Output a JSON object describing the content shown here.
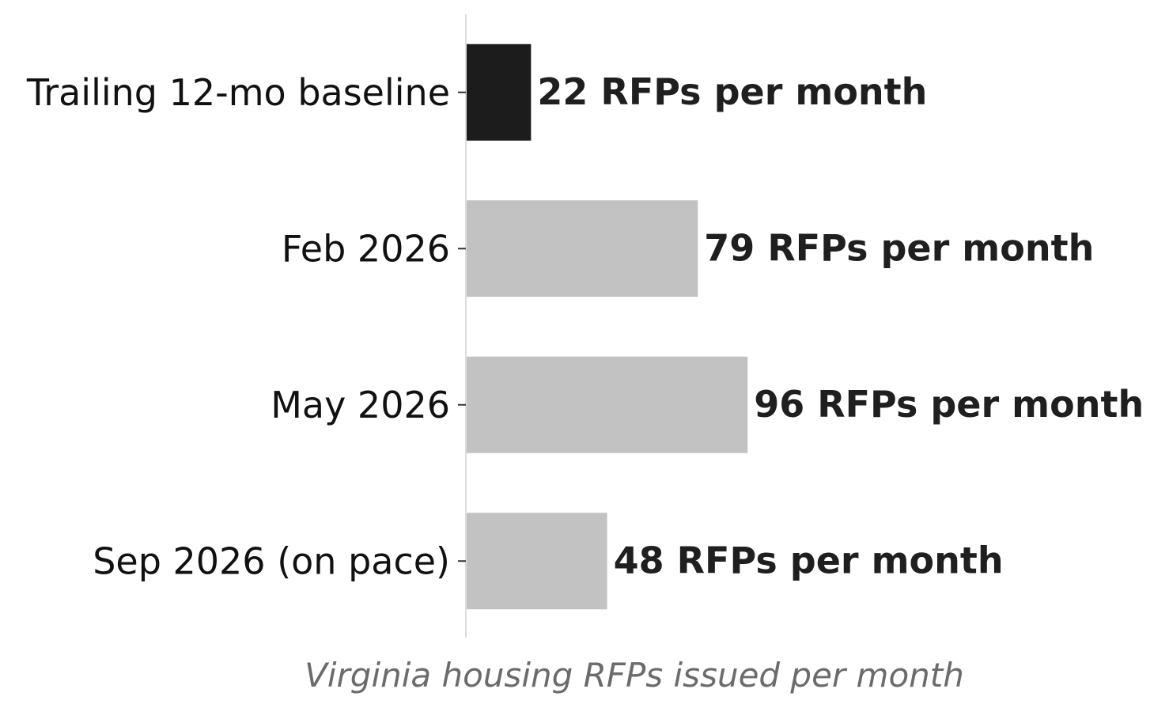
{
  "chart_data": {
    "type": "bar",
    "orientation": "horizontal",
    "categories": [
      "Trailing 12-mo baseline",
      "Feb 2026",
      "May 2026",
      "Sep 2026 (on pace)"
    ],
    "values": [
      22,
      79,
      96,
      48
    ],
    "value_labels": [
      "22 RFPs per month",
      "79 RFPs per month",
      "96 RFPs per month",
      "48 RFPs per month"
    ],
    "xlabel": "Virginia housing RFPs issued per month",
    "ylabel": "",
    "title": "",
    "xlim": [
      0,
      238
    ],
    "grid": false,
    "colors": {
      "baseline": "#1c1c1c",
      "other": "#c2c2c2",
      "axis": "#dddddd",
      "tick": "#333333"
    }
  }
}
